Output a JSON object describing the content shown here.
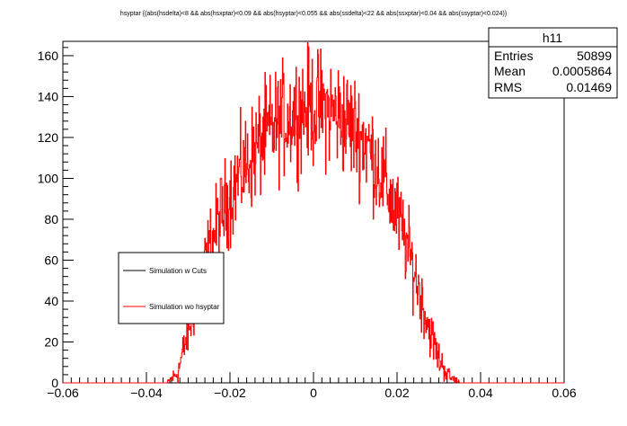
{
  "chart_data": {
    "type": "histogram",
    "title": "hsyptar {(abs(hsdelta)<8 && abs(hsxptar)<0.09 && abs(hsyptar)<0.055 && abs(ssdelta)<22 && abs(ssxptar)<0.04 && abs(ssyptar)<0.024)}",
    "xlim": [
      -0.06,
      0.06
    ],
    "ylim": [
      0,
      167
    ],
    "x_ticks": [
      -0.06,
      -0.04,
      -0.02,
      0,
      0.02,
      0.04,
      0.06
    ],
    "x_tick_labels": [
      "−0.06",
      "−0.04",
      "−0.02",
      "0",
      "0.02",
      "0.04",
      "0.06"
    ],
    "y_ticks": [
      0,
      20,
      40,
      60,
      80,
      100,
      120,
      140,
      160
    ],
    "y_tick_labels": [
      "0",
      "20",
      "40",
      "60",
      "80",
      "100",
      "120",
      "140",
      "160"
    ],
    "stats": {
      "name": "h11",
      "rows": [
        {
          "label": "Entries",
          "value": "50899"
        },
        {
          "label": "Mean",
          "value": "0.0005864"
        },
        {
          "label": "RMS",
          "value": "0.01469"
        }
      ]
    },
    "legend": {
      "position": "middle-left",
      "entries": [
        {
          "label": "Simulation w Cuts",
          "color": "#000000"
        },
        {
          "label": "Simulation wo hsyptar",
          "color": "#ff0000"
        }
      ]
    },
    "series": [
      {
        "name": "Simulation wo hsyptar",
        "color": "#ff0000",
        "x": [
          -0.035,
          -0.0325,
          -0.03,
          -0.0275,
          -0.025,
          -0.0225,
          -0.02,
          -0.0175,
          -0.015,
          -0.0125,
          -0.01,
          -0.0075,
          -0.005,
          -0.0025,
          0,
          0.0025,
          0.005,
          0.0075,
          0.01,
          0.0125,
          0.015,
          0.0175,
          0.02,
          0.0225,
          0.025,
          0.0275,
          0.03,
          0.0325,
          0.035
        ],
        "values": [
          0,
          5,
          25,
          45,
          65,
          80,
          92,
          102,
          110,
          118,
          124,
          128,
          132,
          134,
          135,
          134,
          132,
          128,
          124,
          118,
          108,
          96,
          82,
          66,
          48,
          28,
          12,
          3,
          0
        ]
      }
    ]
  }
}
